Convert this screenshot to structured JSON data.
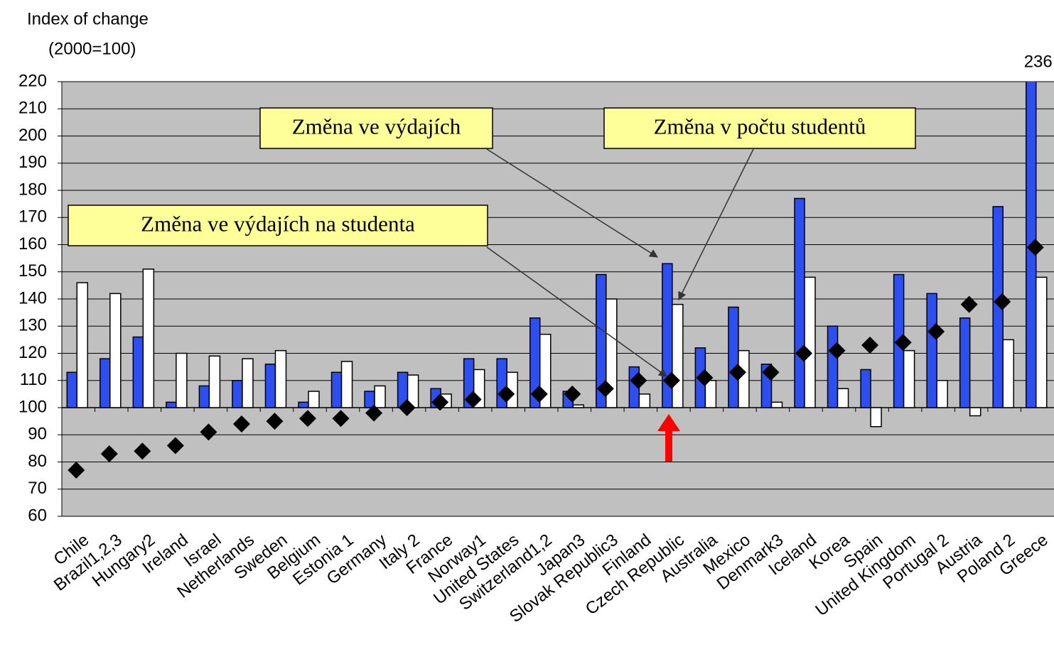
{
  "chart_data": {
    "type": "bar",
    "y_label": [
      "Index of change",
      "(2000=100)"
    ],
    "categories": [
      "Chile",
      "Brazil1,2,3",
      "Hungary2",
      "Ireland",
      "Israel",
      "Netherlands",
      "Sweden",
      "Belgium",
      "Estonia 1",
      "Germany",
      "Italy 2",
      "France",
      "Norway1",
      "United States",
      "Switzerland1,2",
      "Japan3",
      "Slovak Republic3",
      "Finland",
      "Czech Republic",
      "Australia",
      "Mexico",
      "Denmark3",
      "Iceland",
      "Korea",
      "Spain",
      "United Kingdom",
      "Portugal 2",
      "Austria",
      "Poland 2",
      "Greece"
    ],
    "series": [
      {
        "name": "Změna ve výdajích",
        "color": "#2d4ff0",
        "values": [
          113,
          118,
          126,
          102,
          108,
          110,
          116,
          102,
          113,
          106,
          113,
          107,
          118,
          118,
          133,
          106,
          149,
          115,
          153,
          122,
          137,
          116,
          177,
          130,
          114,
          149,
          142,
          133,
          174,
          236
        ],
        "value_labels": [
          null,
          null,
          null,
          null,
          null,
          null,
          null,
          null,
          null,
          null,
          null,
          null,
          null,
          null,
          null,
          null,
          null,
          null,
          null,
          null,
          null,
          null,
          null,
          null,
          null,
          null,
          null,
          null,
          null,
          "236"
        ]
      },
      {
        "name": "Změna v počtu studentů",
        "color": "#ffffff",
        "values": [
          146,
          142,
          151,
          120,
          119,
          118,
          121,
          106,
          117,
          108,
          112,
          105,
          114,
          113,
          127,
          101,
          140,
          105,
          138,
          110,
          121,
          102,
          148,
          107,
          93,
          121,
          110,
          97,
          125,
          148
        ]
      },
      {
        "name": "Změna ve výdajích na studenta",
        "color": "#000000",
        "values": [
          77,
          83,
          84,
          86,
          91,
          94,
          95,
          96,
          96,
          98,
          100,
          102,
          103,
          105,
          105,
          105,
          107,
          110,
          110,
          111,
          113,
          113,
          120,
          121,
          123,
          124,
          128,
          138,
          139,
          159
        ]
      }
    ],
    "ylim": [
      60,
      220
    ],
    "yticks": [
      60,
      70,
      80,
      90,
      100,
      110,
      120,
      130,
      140,
      150,
      160,
      170,
      180,
      190,
      200,
      210,
      220
    ],
    "baseline": 100,
    "grid": true
  }
}
